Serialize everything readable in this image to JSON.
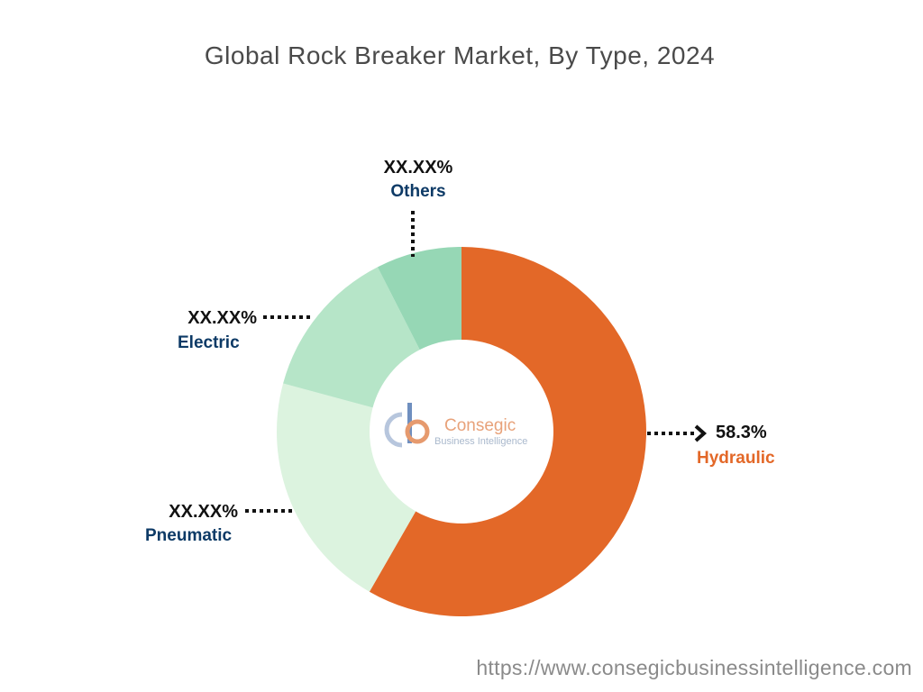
{
  "title": "Global Rock Breaker Market, By Type, 2024",
  "chart_data": {
    "type": "pie",
    "variant": "donut",
    "slices": [
      {
        "name": "Hydraulic",
        "value": 58.3,
        "label": "58.3%",
        "color": "#e36828",
        "label_color": "#e36828"
      },
      {
        "name": "Pneumatic",
        "value": 20.9,
        "label": "XX.XX%",
        "color": "#dcf3df",
        "label_color": "#0d3a66"
      },
      {
        "name": "Electric",
        "value": 13.3,
        "label": "XX.XX%",
        "color": "#b6e5c8",
        "label_color": "#0d3a66"
      },
      {
        "name": "Others",
        "value": 7.5,
        "label": "XX.XX%",
        "color": "#96d7b5",
        "label_color": "#0d3a66"
      }
    ]
  },
  "brand": {
    "name": "Consegic",
    "tagline": "Business Intelligence"
  },
  "source_url": "https://www.consegicbusinessintelligence.com"
}
